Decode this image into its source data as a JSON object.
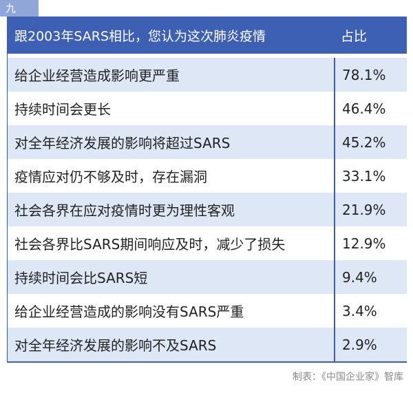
{
  "tab": "九",
  "table": {
    "header": [
      "跟2003年SARS相比，您认为这次肺炎疫情",
      "占比"
    ],
    "rows": [
      [
        "给企业经营造成影响更严重",
        "78.1%"
      ],
      [
        "持续时间会更长",
        "46.4%"
      ],
      [
        "对全年经济发展的影响将超过SARS",
        "45.2%"
      ],
      [
        "疫情应对仍不够及时，存在漏洞",
        "33.1%"
      ],
      [
        "社会各界在应对疫情时更为理性客观",
        "21.9%"
      ],
      [
        "社会各界比SARS期间响应及时，减少了损失",
        "12.9%"
      ],
      [
        "持续时间会比SARS短",
        "9.4%"
      ],
      [
        "给企业经营造成的影响没有SARS严重",
        "3.4%"
      ],
      [
        "对全年经济发展的影响不及SARS",
        "2.9%"
      ]
    ]
  },
  "footer": "制表：《中国企业家》智库"
}
